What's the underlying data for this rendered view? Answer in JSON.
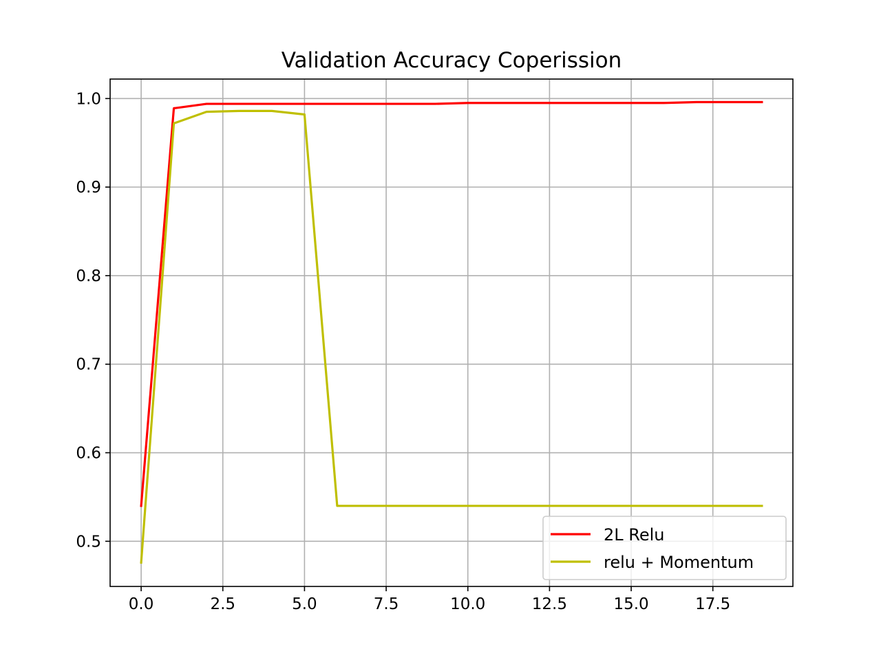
{
  "chart_data": {
    "type": "line",
    "title": "Validation Accuracy Coperission",
    "xlabel": "",
    "ylabel": "",
    "xlim": [
      -0.95,
      19.95
    ],
    "ylim": [
      0.449,
      1.022
    ],
    "xticks": [
      0.0,
      2.5,
      5.0,
      7.5,
      10.0,
      12.5,
      15.0,
      17.5
    ],
    "xtick_labels": [
      "0.0",
      "2.5",
      "5.0",
      "7.5",
      "10.0",
      "12.5",
      "15.0",
      "17.5"
    ],
    "yticks": [
      0.5,
      0.6,
      0.7,
      0.8,
      0.9,
      1.0
    ],
    "ytick_labels": [
      "0.5",
      "0.6",
      "0.7",
      "0.8",
      "0.9",
      "1.0"
    ],
    "grid": true,
    "legend_position": "lower-right",
    "x": [
      0,
      1,
      2,
      3,
      4,
      5,
      6,
      7,
      8,
      9,
      10,
      11,
      12,
      13,
      14,
      15,
      16,
      17,
      18,
      19
    ],
    "series": [
      {
        "name": "2L Relu",
        "color": "#ff0000",
        "values": [
          0.54,
          0.989,
          0.994,
          0.994,
          0.994,
          0.994,
          0.994,
          0.994,
          0.994,
          0.994,
          0.995,
          0.995,
          0.995,
          0.995,
          0.995,
          0.995,
          0.995,
          0.996,
          0.996,
          0.996
        ]
      },
      {
        "name": "relu + Momentum",
        "color": "#bfbf00",
        "values": [
          0.476,
          0.972,
          0.985,
          0.986,
          0.986,
          0.982,
          0.54,
          0.54,
          0.54,
          0.54,
          0.54,
          0.54,
          0.54,
          0.54,
          0.54,
          0.54,
          0.54,
          0.54,
          0.54,
          0.54
        ]
      }
    ]
  }
}
